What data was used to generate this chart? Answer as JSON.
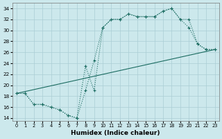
{
  "xlabel": "Humidex (Indice chaleur)",
  "bg_color": "#cce8ec",
  "grid_color": "#aacdd4",
  "line_color": "#1a6b60",
  "xlim": [
    -0.5,
    23.5
  ],
  "ylim": [
    13.5,
    35.0
  ],
  "yticks": [
    14,
    16,
    18,
    20,
    22,
    24,
    26,
    28,
    30,
    32,
    34
  ],
  "xticks": [
    0,
    1,
    2,
    3,
    4,
    5,
    6,
    7,
    8,
    9,
    10,
    11,
    12,
    13,
    14,
    15,
    16,
    17,
    18,
    19,
    20,
    21,
    22,
    23
  ],
  "line1_x": [
    0,
    1,
    2,
    3,
    4,
    5,
    6,
    7,
    8,
    9,
    10,
    11,
    12,
    13,
    14,
    15,
    16,
    17,
    18,
    19,
    20,
    21,
    22,
    23
  ],
  "line1_y": [
    18.5,
    18.5,
    16.5,
    16.5,
    16.0,
    15.5,
    14.5,
    14.0,
    19.0,
    24.5,
    30.5,
    32.0,
    32.0,
    33.0,
    32.5,
    32.5,
    32.5,
    33.5,
    34.0,
    32.0,
    30.5,
    27.5,
    26.5,
    26.5
  ],
  "line2_x": [
    0,
    1,
    2,
    3,
    4,
    5,
    6,
    7,
    8,
    9,
    10,
    11,
    12,
    13,
    14,
    15,
    16,
    17,
    18,
    19,
    20,
    21,
    22,
    23
  ],
  "line2_y": [
    18.5,
    18.5,
    16.5,
    16.5,
    16.0,
    15.5,
    14.5,
    14.0,
    23.5,
    19.0,
    30.5,
    32.0,
    32.0,
    33.0,
    32.5,
    32.5,
    32.5,
    33.5,
    34.0,
    32.0,
    32.0,
    27.5,
    26.5,
    26.5
  ],
  "line3_x": [
    0,
    23
  ],
  "line3_y": [
    18.5,
    26.5
  ]
}
